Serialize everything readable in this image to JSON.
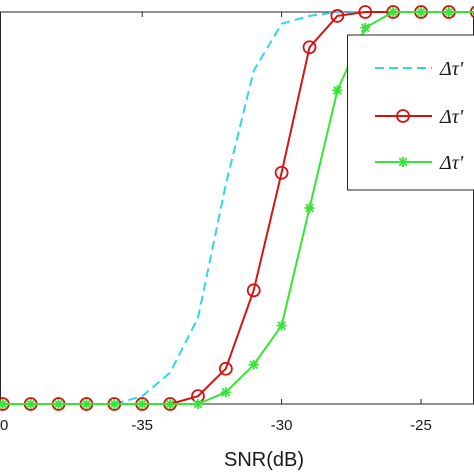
{
  "chart_data": {
    "type": "line",
    "xlabel": "SNR(dB)",
    "xlim": [
      -40.1,
      -23.1
    ],
    "ylim": [
      0,
      1
    ],
    "x_ticks": [
      "-35",
      "-30",
      "-25"
    ],
    "first_tick_fragment": "0",
    "grid": false,
    "legend_placement": "right",
    "legend_entries": [
      "Δτ'",
      "Δτ'",
      "Δτ'"
    ],
    "x": [
      -40,
      -39,
      -38,
      -37,
      -36,
      -35,
      -34,
      -33,
      -32,
      -31,
      -30,
      -29,
      -28,
      -27,
      -26,
      -25,
      -24,
      -23
    ],
    "series": [
      {
        "color": "#2ed8e6",
        "style": "dashed",
        "marker": "none",
        "values": [
          0,
          0,
          0,
          0,
          0,
          0.02,
          0.08,
          0.22,
          0.56,
          0.85,
          0.97,
          0.99,
          1,
          1,
          1,
          1,
          1,
          1
        ]
      },
      {
        "color": "#d21414",
        "style": "solid",
        "marker": "circle",
        "values": [
          0,
          0,
          0,
          0,
          0,
          0,
          0,
          0.02,
          0.09,
          0.29,
          0.59,
          0.91,
          0.99,
          1,
          1,
          1,
          1,
          1
        ]
      },
      {
        "color": "#36e636",
        "style": "solid",
        "marker": "star",
        "values": [
          0,
          0,
          0,
          0,
          0,
          0,
          0,
          0,
          0.03,
          0.1,
          0.2,
          0.5,
          0.8,
          0.96,
          1,
          1,
          1,
          1
        ]
      }
    ]
  }
}
